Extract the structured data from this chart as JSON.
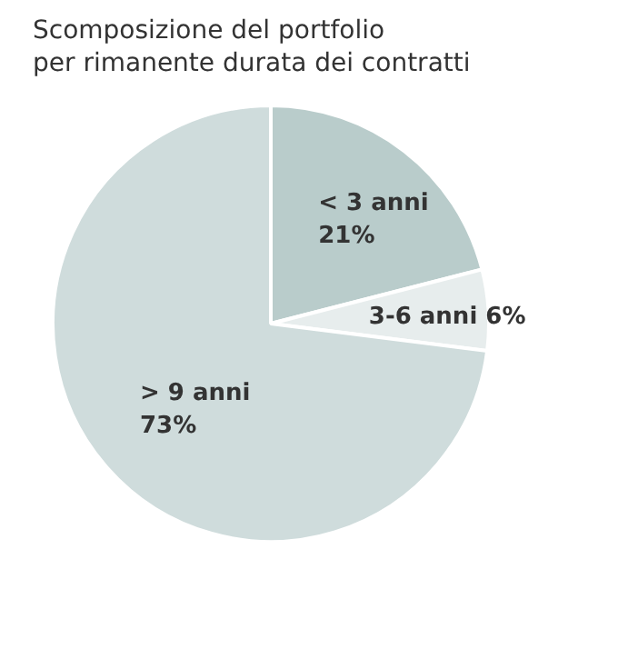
{
  "chart_data": {
    "type": "pie",
    "title": "Scomposizione del portfolio\nper rimanente durata dei contratti",
    "categories": [
      "< 3 anni",
      "3-6 anni",
      "> 9 anni"
    ],
    "values": [
      21,
      6,
      73
    ],
    "value_labels": [
      "21%",
      "6%",
      "73%"
    ],
    "colors": [
      "#b9cccb",
      "#e7eded",
      "#cfdcdc"
    ]
  }
}
